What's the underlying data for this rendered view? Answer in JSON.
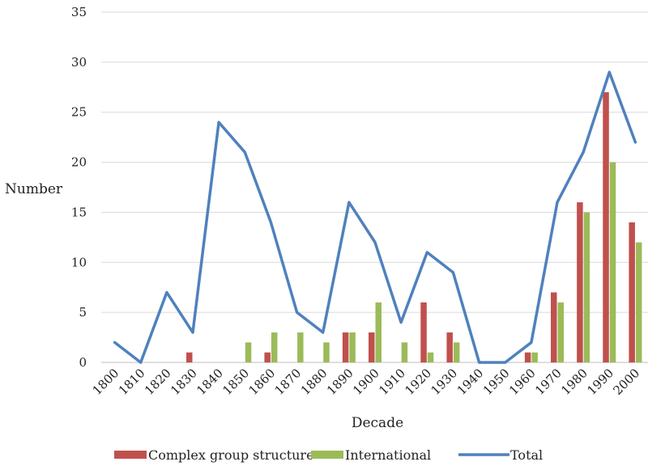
{
  "chart_data": {
    "type": "bar",
    "title": "",
    "xlabel": "Decade",
    "ylabel": "Number",
    "ylim": [
      0,
      35
    ],
    "yticks": [
      0,
      5,
      10,
      15,
      20,
      25,
      30,
      35
    ],
    "grid": "horizontal",
    "legend_position": "bottom",
    "categories": [
      "1800",
      "1810",
      "1820",
      "1830",
      "1840",
      "1850",
      "1860",
      "1870",
      "1880",
      "1890",
      "1900",
      "1910",
      "1920",
      "1930",
      "1940",
      "1950",
      "1960",
      "1970",
      "1980",
      "1990",
      "2000"
    ],
    "series": [
      {
        "name": "Complex group structure",
        "kind": "bar",
        "color": "#c0504d",
        "values": [
          0,
          0,
          0,
          1,
          0,
          0,
          1,
          0,
          0,
          3,
          3,
          0,
          6,
          3,
          0,
          0,
          1,
          7,
          16,
          27,
          14
        ]
      },
      {
        "name": "International",
        "kind": "bar",
        "color": "#9bbb59",
        "values": [
          0,
          0,
          0,
          0,
          0,
          2,
          3,
          3,
          2,
          3,
          6,
          2,
          1,
          2,
          0,
          0,
          1,
          6,
          15,
          20,
          12
        ]
      },
      {
        "name": "Total",
        "kind": "line",
        "color": "#4f81bd",
        "values": [
          2,
          0,
          7,
          3,
          24,
          21,
          14,
          5,
          3,
          16,
          12,
          4,
          11,
          9,
          0,
          0,
          2,
          16,
          21,
          29,
          22
        ]
      }
    ]
  }
}
